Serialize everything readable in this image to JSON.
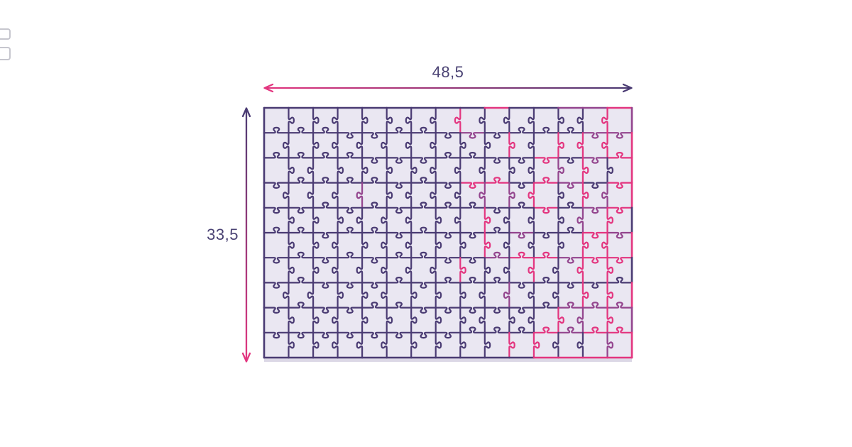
{
  "page": {
    "background": "#ffffff"
  },
  "diagram": {
    "width_label": "48,5",
    "height_label": "33,5",
    "label_color": "#4b4374",
    "arrow": {
      "pink": "#e3357f",
      "purple": "#4a3b73"
    },
    "puzzle": {
      "cols": 15,
      "rows": 10,
      "background": "#eae7f2",
      "side_shade": "#dcd8e6",
      "line_purple": "#4a3b73",
      "line_pink": "#e3357f",
      "line_plum": "#93458e"
    },
    "edge_fragments_color": "#c6c6ce"
  }
}
